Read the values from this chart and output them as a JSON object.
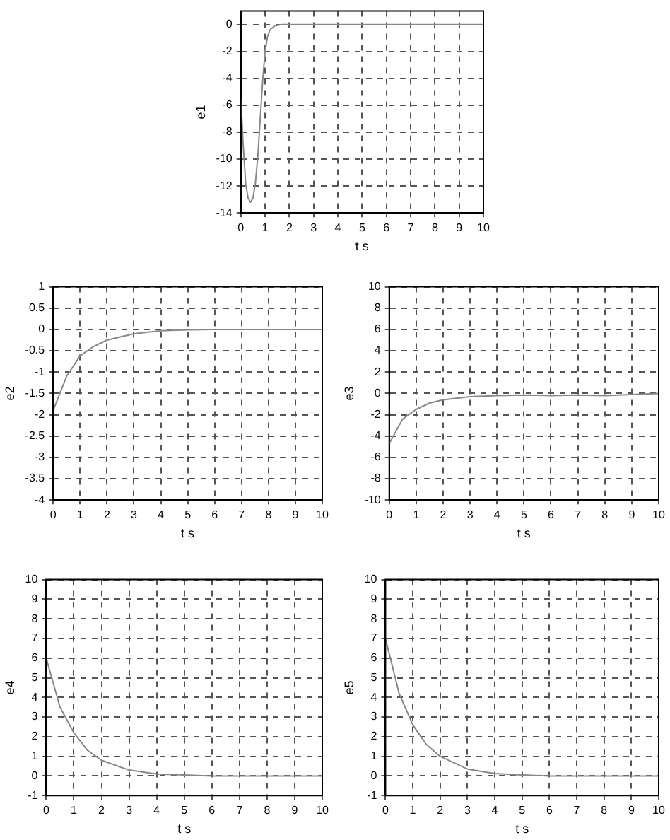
{
  "chart_data": [
    {
      "type": "line",
      "xlabel": "t s",
      "ylabel": "e1",
      "xlim": [
        0,
        10
      ],
      "ylim": [
        -14,
        1
      ],
      "xticks": [
        0,
        1,
        2,
        3,
        4,
        5,
        6,
        7,
        8,
        9,
        10
      ],
      "yticks": [
        -14,
        -12,
        -10,
        -8,
        -6,
        -4,
        -2,
        0
      ],
      "grid": true,
      "marker": "none",
      "series": [
        {
          "color": "#888888",
          "x": [
            0,
            0.1,
            0.2,
            0.3,
            0.4,
            0.5,
            0.6,
            0.7,
            0.8,
            0.9,
            1.0,
            1.1,
            1.2,
            1.4,
            1.7,
            10
          ],
          "values": [
            -5.5,
            -9,
            -11.8,
            -12.9,
            -13.2,
            -12.9,
            -11.8,
            -9.8,
            -7,
            -4.2,
            -2,
            -0.9,
            -0.4,
            -0.1,
            0,
            0
          ]
        }
      ]
    },
    {
      "type": "line",
      "xlabel": "t s",
      "ylabel": "e2",
      "xlim": [
        0,
        10
      ],
      "ylim": [
        -4,
        1
      ],
      "xticks": [
        0,
        1,
        2,
        3,
        4,
        5,
        6,
        7,
        8,
        9,
        10
      ],
      "yticks": [
        -4,
        -3.5,
        -3,
        -2.5,
        -2,
        -1.5,
        -1,
        -0.5,
        0,
        0.5,
        1
      ],
      "grid": true,
      "marker": "none",
      "series": [
        {
          "color": "#888888",
          "x": [
            0,
            0.5,
            1,
            1.5,
            2,
            3,
            4,
            5,
            6,
            10
          ],
          "values": [
            -1.9,
            -1.1,
            -0.62,
            -0.4,
            -0.25,
            -0.1,
            -0.03,
            -0.01,
            0,
            0
          ]
        }
      ]
    },
    {
      "type": "line",
      "xlabel": "t s",
      "ylabel": "e3",
      "xlim": [
        0,
        10
      ],
      "ylim": [
        -10,
        10
      ],
      "xticks": [
        0,
        1,
        2,
        3,
        4,
        5,
        6,
        7,
        8,
        9,
        10
      ],
      "yticks": [
        -10,
        -8,
        -6,
        -4,
        -2,
        0,
        2,
        4,
        6,
        8,
        10
      ],
      "grid": true,
      "marker": "none",
      "series": [
        {
          "color": "#888888",
          "x": [
            0,
            0.5,
            1,
            1.5,
            2,
            3,
            4,
            5,
            6,
            7,
            8,
            9,
            10
          ],
          "values": [
            -4.7,
            -2.4,
            -1.5,
            -0.9,
            -0.6,
            -0.3,
            -0.2,
            -0.15,
            -0.2,
            -0.15,
            -0.2,
            -0.1,
            0
          ]
        }
      ]
    },
    {
      "type": "line",
      "xlabel": "t s",
      "ylabel": "e4",
      "xlim": [
        0,
        10
      ],
      "ylim": [
        -1,
        10
      ],
      "xticks": [
        0,
        1,
        2,
        3,
        4,
        5,
        6,
        7,
        8,
        9,
        10
      ],
      "yticks": [
        -1,
        0,
        1,
        2,
        3,
        4,
        5,
        6,
        7,
        8,
        9,
        10
      ],
      "grid": true,
      "marker": "none",
      "series": [
        {
          "color": "#888888",
          "x": [
            0,
            0.5,
            1,
            1.5,
            2,
            3,
            4,
            5,
            6,
            10
          ],
          "values": [
            6,
            3.5,
            2.2,
            1.3,
            0.8,
            0.3,
            0.1,
            0.05,
            0,
            0
          ]
        }
      ]
    },
    {
      "type": "line",
      "xlabel": "t s",
      "ylabel": "e5",
      "xlim": [
        0,
        10
      ],
      "ylim": [
        -1,
        10
      ],
      "xticks": [
        0,
        1,
        2,
        3,
        4,
        5,
        6,
        7,
        8,
        9,
        10
      ],
      "yticks": [
        -1,
        0,
        1,
        2,
        3,
        4,
        5,
        6,
        7,
        8,
        9,
        10
      ],
      "grid": true,
      "marker": "none",
      "series": [
        {
          "color": "#888888",
          "x": [
            0,
            0.5,
            1,
            1.5,
            2,
            3,
            4,
            5,
            6,
            10
          ],
          "values": [
            7,
            4.2,
            2.6,
            1.6,
            1,
            0.35,
            0.12,
            0.05,
            0,
            0
          ]
        }
      ]
    }
  ]
}
